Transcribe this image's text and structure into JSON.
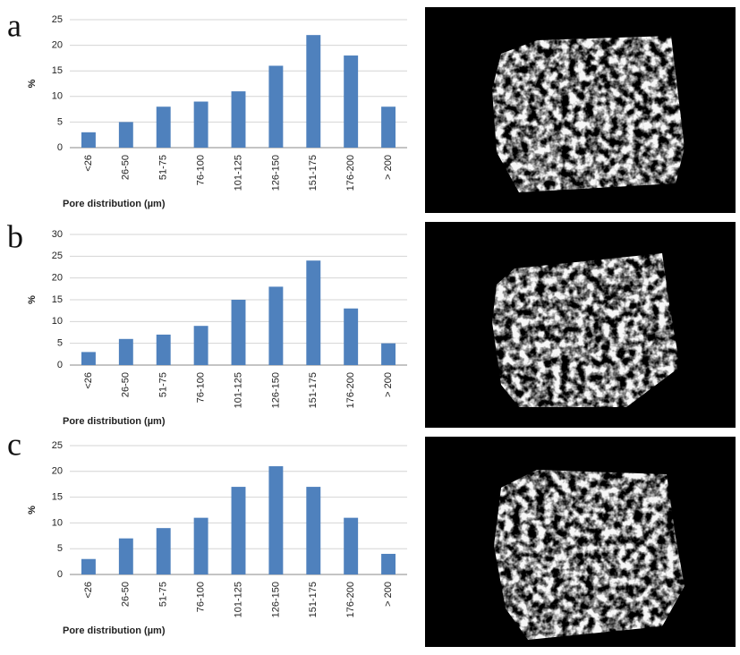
{
  "chart_data": [
    {
      "type": "bar",
      "panel_label": "a",
      "y_label": "%",
      "x_label": "Pore distribution (µm)",
      "categories": [
        "<26",
        "26-50",
        "51-75",
        "76-100",
        "101-125",
        "126-150",
        "151-175",
        "176-200",
        "> 200"
      ],
      "values": [
        3,
        5,
        8,
        9,
        11,
        16,
        22,
        18,
        8
      ],
      "color": "#4f81bd",
      "ylim": [
        0,
        25
      ],
      "yticks": [
        0,
        5,
        10,
        15,
        20,
        25
      ],
      "grid": true
    },
    {
      "type": "bar",
      "panel_label": "b",
      "y_label": "%",
      "x_label": "Pore distribution (µm)",
      "categories": [
        "<26",
        "26-50",
        "51-75",
        "76-100",
        "101-125",
        "126-150",
        "151-175",
        "176-200",
        "> 200"
      ],
      "values": [
        3,
        6,
        7,
        9,
        15,
        18,
        24,
        13,
        5
      ],
      "color": "#4f81bd",
      "ylim": [
        0,
        30
      ],
      "yticks": [
        0,
        5,
        10,
        15,
        20,
        25,
        30
      ],
      "grid": true
    },
    {
      "type": "bar",
      "panel_label": "c",
      "y_label": "%",
      "x_label": "Pore distribution (µm)",
      "categories": [
        "<26",
        "26-50",
        "51-75",
        "76-100",
        "101-125",
        "126-150",
        "151-175",
        "176-200",
        "> 200"
      ],
      "values": [
        3,
        7,
        9,
        11,
        17,
        21,
        17,
        11,
        4
      ],
      "color": "#4f81bd",
      "ylim": [
        0,
        25
      ],
      "yticks": [
        0,
        5,
        10,
        15,
        20,
        25
      ],
      "grid": true
    }
  ]
}
